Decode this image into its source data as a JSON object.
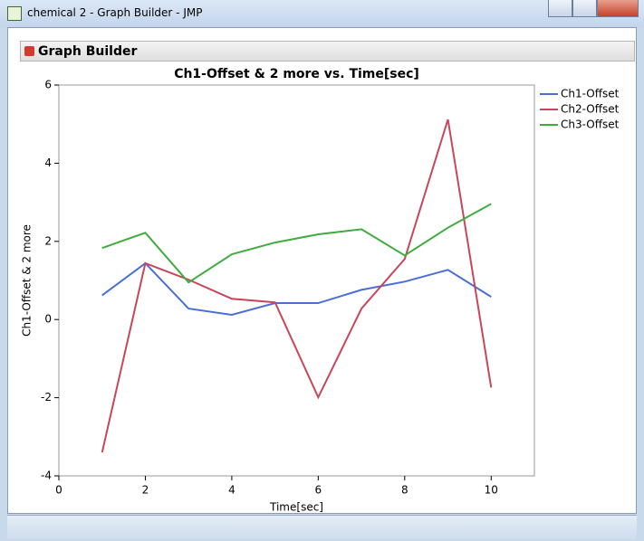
{
  "window": {
    "title": "chemical 2 - Graph Builder - JMP",
    "panel_title": "Graph Builder"
  },
  "chart_data": {
    "type": "line",
    "title": "Ch1-Offset & 2 more vs. Time[sec]",
    "x_label": "Time[sec]",
    "y_label": "Ch1-Offset & 2 more",
    "x": [
      1,
      2,
      3,
      4,
      5,
      6,
      7,
      8,
      9,
      10
    ],
    "series": [
      {
        "name": "Ch1-Offset",
        "color": "#4a6fd4",
        "values": [
          0.62,
          1.44,
          0.28,
          0.12,
          0.42,
          0.42,
          0.76,
          0.97,
          1.27,
          0.58
        ]
      },
      {
        "name": "Ch2-Offset",
        "color": "#c8465a",
        "values": [
          -3.4,
          1.44,
          1.02,
          0.53,
          0.44,
          -1.99,
          0.28,
          1.55,
          5.12,
          -1.74
        ]
      },
      {
        "name": "Ch3-Offset",
        "color": "#3fac3f",
        "values": [
          1.83,
          2.22,
          0.95,
          1.67,
          1.97,
          2.18,
          2.31,
          1.64,
          2.35,
          2.96
        ]
      }
    ],
    "xlim": [
      0,
      11
    ],
    "xticks": [
      0,
      2,
      4,
      6,
      8,
      10
    ],
    "ylim": [
      -4,
      6
    ],
    "yticks": [
      -4,
      -2,
      0,
      2,
      4,
      6
    ],
    "legend": "right"
  }
}
